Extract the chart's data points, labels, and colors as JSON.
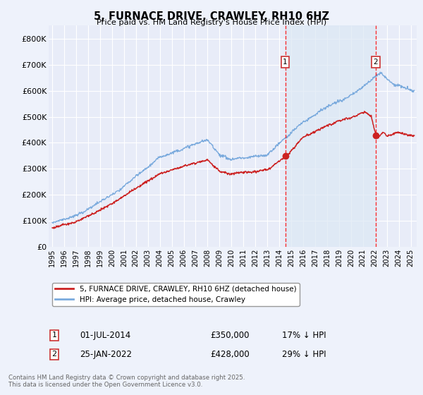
{
  "title": "5, FURNACE DRIVE, CRAWLEY, RH10 6HZ",
  "subtitle": "Price paid vs. HM Land Registry's House Price Index (HPI)",
  "background_color": "#eef2fb",
  "plot_bg_color": "#e8ecf8",
  "grid_color": "#ffffff",
  "hpi_color": "#7aaadd",
  "price_color": "#cc2222",
  "shade_color": "#dce8f5",
  "marker1_date_x": 2014.5,
  "marker2_date_x": 2022.08,
  "marker1_price": 350000,
  "marker2_price": 428000,
  "marker1_label": "01-JUL-2014",
  "marker2_label": "25-JAN-2022",
  "marker1_hpi_pct": "17% ↓ HPI",
  "marker2_hpi_pct": "29% ↓ HPI",
  "legend_line1": "5, FURNACE DRIVE, CRAWLEY, RH10 6HZ (detached house)",
  "legend_line2": "HPI: Average price, detached house, Crawley",
  "footnote": "Contains HM Land Registry data © Crown copyright and database right 2025.\nThis data is licensed under the Open Government Licence v3.0.",
  "ylim": [
    0,
    850000
  ],
  "xlim_start": 1994.7,
  "xlim_end": 2025.5,
  "yticks": [
    0,
    100000,
    200000,
    300000,
    400000,
    500000,
    600000,
    700000,
    800000
  ],
  "ytick_labels": [
    "£0",
    "£100K",
    "£200K",
    "£300K",
    "£400K",
    "£500K",
    "£600K",
    "£700K",
    "£800K"
  ],
  "xticks": [
    1995,
    1996,
    1997,
    1998,
    1999,
    2000,
    2001,
    2002,
    2003,
    2004,
    2005,
    2006,
    2007,
    2008,
    2009,
    2010,
    2011,
    2012,
    2013,
    2014,
    2015,
    2016,
    2017,
    2018,
    2019,
    2020,
    2021,
    2022,
    2023,
    2024,
    2025
  ]
}
